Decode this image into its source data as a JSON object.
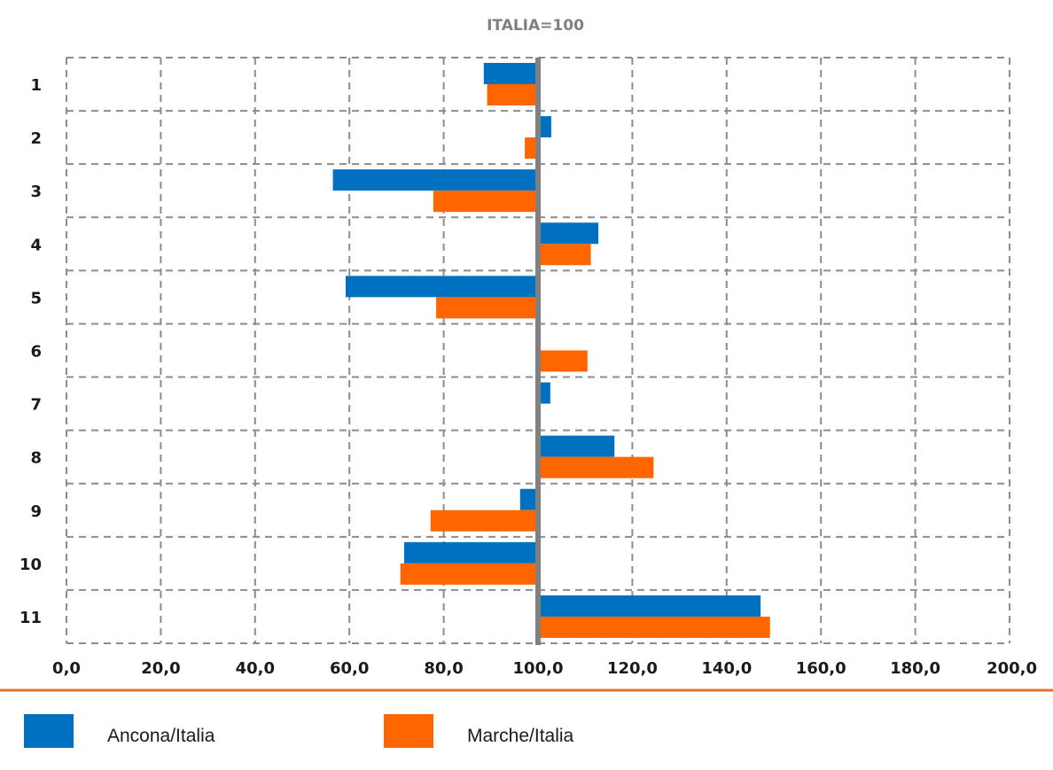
{
  "chart_data": {
    "type": "bar",
    "orientation": "horizontal",
    "title": "ITALIA=100",
    "baseline": 100,
    "categories": [
      "1",
      "2",
      "3",
      "4",
      "5",
      "6",
      "7",
      "8",
      "9",
      "10",
      "11"
    ],
    "x_ticks": [
      "0,0",
      "20,0",
      "40,0",
      "60,0",
      "80,0",
      "100,0",
      "120,0",
      "140,0",
      "160,0",
      "180,0",
      "200,0"
    ],
    "xlim": [
      0,
      200
    ],
    "grid": true,
    "legend_position": "bottom",
    "series": [
      {
        "name": "Ancona/Italia",
        "color": "#0070C0",
        "values": [
          88.5,
          102.8,
          56.5,
          112.8,
          59.2,
          99.5,
          102.6,
          116.2,
          96.2,
          71.6,
          147.2
        ]
      },
      {
        "name": "Marche/Italia",
        "color": "#FF6600",
        "values": [
          89.2,
          97.2,
          77.8,
          111.2,
          78.4,
          110.5,
          null,
          124.5,
          77.2,
          70.8,
          149.2
        ]
      }
    ]
  },
  "colors": {
    "grid": "#8c8c8c",
    "baseline_line": "#808080",
    "divider": "#E07030"
  }
}
